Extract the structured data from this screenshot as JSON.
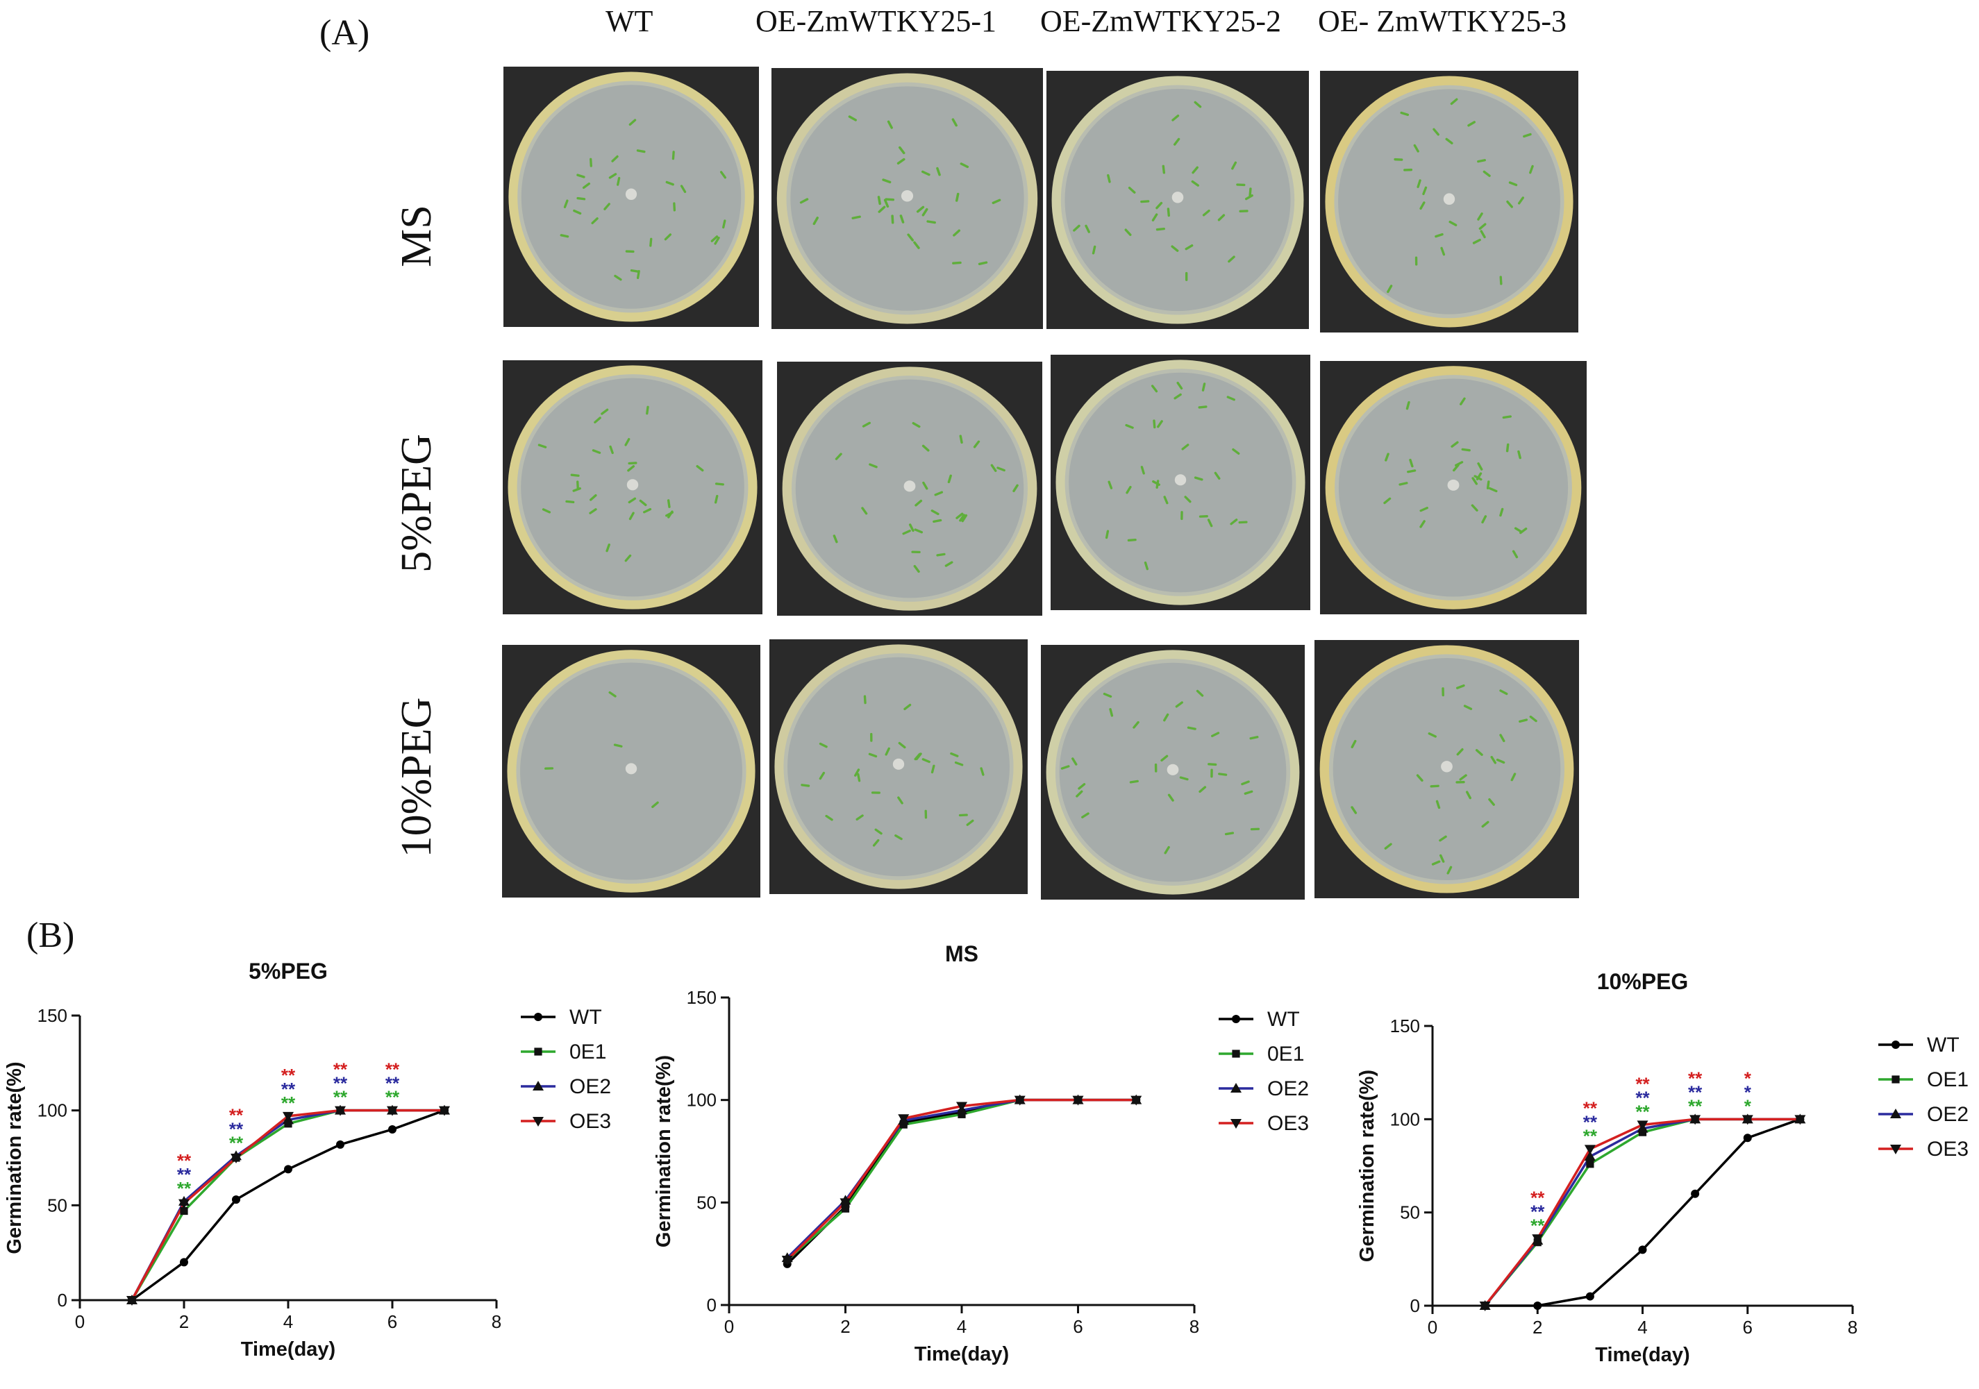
{
  "panel_a_label": "(A)",
  "panel_b_label": "(B)",
  "columns": [
    "WT",
    "OE-ZmWTKY25-1",
    "OE-ZmWTKY25-2",
    "OE- ZmWTKY25-3"
  ],
  "rows": [
    "MS",
    "5%PEG",
    "10%PEG"
  ],
  "colors": {
    "WT": "#000000",
    "OE1": "#2ea82e",
    "OE2": "#2b2b9e",
    "OE3": "#d42020"
  },
  "chart_data": [
    {
      "type": "line",
      "title": "5%PEG",
      "xlabel": "Time(day)",
      "ylabel": "Germination rate(%)",
      "xlim": [
        0,
        8
      ],
      "ylim": [
        0,
        150
      ],
      "xticks": [
        "0",
        "2",
        "4",
        "6",
        "8"
      ],
      "yticks": [
        "0",
        "50",
        "100",
        "150"
      ],
      "legend": "right",
      "x": [
        1,
        2,
        3,
        4,
        5,
        6,
        7
      ],
      "series": [
        {
          "name": "WT",
          "marker": "circle",
          "values": [
            0,
            20,
            53,
            69,
            82,
            90,
            100
          ]
        },
        {
          "name": "0E1",
          "marker": "square",
          "values": [
            0,
            47,
            75,
            93,
            100,
            100,
            100
          ]
        },
        {
          "name": "OE2",
          "marker": "triangle",
          "values": [
            0,
            52,
            76,
            95,
            100,
            100,
            100
          ]
        },
        {
          "name": "OE3",
          "marker": "triangle-down",
          "values": [
            0,
            51,
            75,
            97,
            100,
            100,
            100
          ]
        }
      ],
      "annotations": [
        {
          "x": 2,
          "marks": [
            "**",
            "**",
            "**"
          ]
        },
        {
          "x": 3,
          "marks": [
            "**",
            "**",
            "**"
          ]
        },
        {
          "x": 4,
          "marks": [
            "**",
            "**",
            "**"
          ]
        },
        {
          "x": 5,
          "marks": [
            "**",
            "**",
            "**"
          ]
        },
        {
          "x": 6,
          "marks": [
            "**",
            "**",
            "**"
          ]
        }
      ]
    },
    {
      "type": "line",
      "title": "MS",
      "xlabel": "Time(day)",
      "ylabel": "Germination rate(%)",
      "xlim": [
        0,
        8
      ],
      "ylim": [
        0,
        150
      ],
      "xticks": [
        "0",
        "2",
        "4",
        "6",
        "8"
      ],
      "yticks": [
        "0",
        "50",
        "100",
        "150"
      ],
      "legend": "right",
      "x": [
        1,
        2,
        3,
        4,
        5,
        6,
        7
      ],
      "series": [
        {
          "name": "WT",
          "marker": "circle",
          "values": [
            20,
            48,
            89,
            94,
            100,
            100,
            100
          ]
        },
        {
          "name": "0E1",
          "marker": "square",
          "values": [
            22,
            47,
            88,
            93,
            100,
            100,
            100
          ]
        },
        {
          "name": "OE2",
          "marker": "triangle",
          "values": [
            23,
            51,
            90,
            95,
            100,
            100,
            100
          ]
        },
        {
          "name": "OE3",
          "marker": "triangle-down",
          "values": [
            22,
            50,
            91,
            97,
            100,
            100,
            100
          ]
        }
      ],
      "annotations": []
    },
    {
      "type": "line",
      "title": "10%PEG",
      "xlabel": "Time(day)",
      "ylabel": "Germination rate(%)",
      "xlim": [
        0,
        8
      ],
      "ylim": [
        0,
        150
      ],
      "xticks": [
        "0",
        "2",
        "4",
        "6",
        "8"
      ],
      "yticks": [
        "0",
        "50",
        "100",
        "150"
      ],
      "legend": "right",
      "x": [
        1,
        2,
        3,
        4,
        5,
        6,
        7
      ],
      "series": [
        {
          "name": "WT",
          "marker": "circle",
          "values": [
            0,
            0,
            5,
            30,
            60,
            90,
            100
          ]
        },
        {
          "name": "OE1",
          "marker": "square",
          "values": [
            0,
            34,
            76,
            93,
            100,
            100,
            100
          ]
        },
        {
          "name": "OE2",
          "marker": "triangle",
          "values": [
            0,
            35,
            80,
            95,
            100,
            100,
            100
          ]
        },
        {
          "name": "OE3",
          "marker": "triangle-down",
          "values": [
            0,
            36,
            84,
            97,
            100,
            100,
            100
          ]
        }
      ],
      "annotations": [
        {
          "x": 2,
          "marks": [
            "**",
            "**",
            "**"
          ]
        },
        {
          "x": 3,
          "marks": [
            "**",
            "**",
            "**"
          ]
        },
        {
          "x": 4,
          "marks": [
            "**",
            "**",
            "**"
          ]
        },
        {
          "x": 5,
          "marks": [
            "**",
            "**",
            "**"
          ]
        },
        {
          "x": 6,
          "marks": [
            "*",
            "*",
            "*"
          ]
        }
      ]
    }
  ]
}
